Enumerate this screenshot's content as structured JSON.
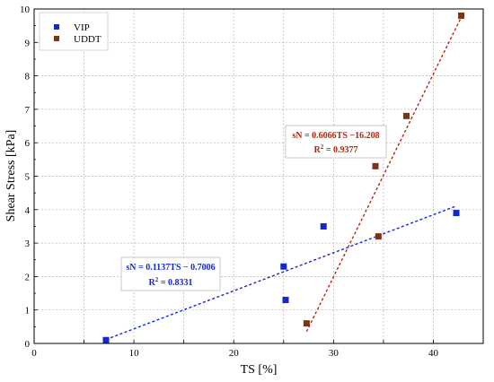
{
  "chart_data": {
    "type": "scatter",
    "xlabel": "TS [%]",
    "ylabel": "Shear Stress [kPa]",
    "xlim": [
      0,
      45
    ],
    "ylim": [
      0,
      10
    ],
    "xticks": [
      0,
      10,
      20,
      30,
      40
    ],
    "yticks": [
      0,
      1,
      2,
      3,
      4,
      5,
      6,
      7,
      8,
      9,
      10
    ],
    "grid": true,
    "legend_position": "top-left",
    "series": [
      {
        "name": "VIP",
        "color": "#1428d2",
        "marker": "square",
        "points": [
          {
            "x": 7.2,
            "y": 0.1
          },
          {
            "x": 25.0,
            "y": 2.3
          },
          {
            "x": 25.2,
            "y": 1.3
          },
          {
            "x": 29.0,
            "y": 3.5
          },
          {
            "x": 42.3,
            "y": 3.9
          }
        ],
        "trendline": {
          "style": "dashed",
          "slope": 0.1137,
          "intercept": -0.7006,
          "x_range": [
            7.2,
            42.3
          ],
          "equation": "sN = 0.1137TS − 0.7006",
          "r2": "R",
          "r2_sup": "2",
          "r2_value": " = 0.8331"
        }
      },
      {
        "name": "UDDT",
        "color": "#7a3418",
        "marker": "square",
        "points": [
          {
            "x": 27.3,
            "y": 0.6
          },
          {
            "x": 34.2,
            "y": 5.3
          },
          {
            "x": 34.5,
            "y": 3.2
          },
          {
            "x": 37.3,
            "y": 6.8
          },
          {
            "x": 42.8,
            "y": 9.8
          }
        ],
        "trendline": {
          "style": "dashed",
          "color": "#b5260a",
          "slope": 0.6066,
          "intercept": -16.208,
          "x_range": [
            27.3,
            42.8
          ],
          "equation": "sN = 0.6066TS −16.208",
          "r2": "R",
          "r2_sup": "2",
          "r2_value": " = 0.9377"
        }
      }
    ]
  }
}
